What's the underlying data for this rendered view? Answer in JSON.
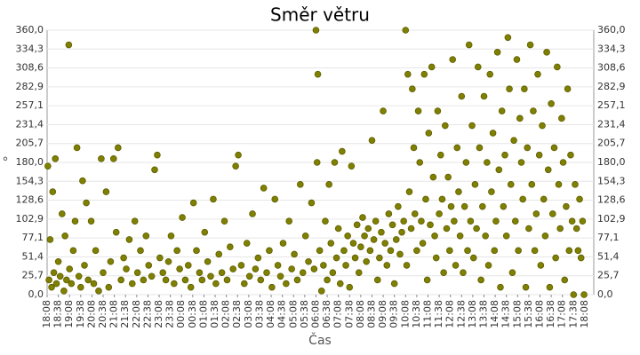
{
  "chart_data": {
    "type": "scatter",
    "title": "Směr větru",
    "xlabel": "Čas",
    "ylabel": "°",
    "color": "#808000",
    "grid": true,
    "xlim": [
      0,
      1464
    ],
    "ylim": [
      0,
      360
    ],
    "xticks": [
      {
        "value": 0,
        "label": "18:08"
      },
      {
        "value": 30,
        "label": "18:38"
      },
      {
        "value": 60,
        "label": "19:08"
      },
      {
        "value": 90,
        "label": "19:38"
      },
      {
        "value": 120,
        "label": "20:08"
      },
      {
        "value": 150,
        "label": "20:38"
      },
      {
        "value": 180,
        "label": "21:08"
      },
      {
        "value": 210,
        "label": "21:38"
      },
      {
        "value": 240,
        "label": "22:08"
      },
      {
        "value": 270,
        "label": "22:38"
      },
      {
        "value": 300,
        "label": "23:08"
      },
      {
        "value": 330,
        "label": "23:38"
      },
      {
        "value": 360,
        "label": "00:08"
      },
      {
        "value": 390,
        "label": "00:38"
      },
      {
        "value": 420,
        "label": "01:08"
      },
      {
        "value": 450,
        "label": "01:38"
      },
      {
        "value": 480,
        "label": "02:08"
      },
      {
        "value": 510,
        "label": "02:38"
      },
      {
        "value": 540,
        "label": "03:08"
      },
      {
        "value": 570,
        "label": "03:38"
      },
      {
        "value": 600,
        "label": "04:08"
      },
      {
        "value": 630,
        "label": "04:38"
      },
      {
        "value": 660,
        "label": "05:08"
      },
      {
        "value": 690,
        "label": "05:38"
      },
      {
        "value": 720,
        "label": "06:08"
      },
      {
        "value": 750,
        "label": "06:38"
      },
      {
        "value": 780,
        "label": "07:08"
      },
      {
        "value": 810,
        "label": "07:38"
      },
      {
        "value": 840,
        "label": "08:08"
      },
      {
        "value": 870,
        "label": "08:38"
      },
      {
        "value": 900,
        "label": "09:08"
      },
      {
        "value": 930,
        "label": "09:38"
      },
      {
        "value": 960,
        "label": "10:08"
      },
      {
        "value": 990,
        "label": "10:38"
      },
      {
        "value": 1020,
        "label": "11:08"
      },
      {
        "value": 1050,
        "label": "11:38"
      },
      {
        "value": 1080,
        "label": "12:08"
      },
      {
        "value": 1110,
        "label": "12:38"
      },
      {
        "value": 1140,
        "label": "13:08"
      },
      {
        "value": 1170,
        "label": "13:38"
      },
      {
        "value": 1200,
        "label": "14:08"
      },
      {
        "value": 1230,
        "label": "14:38"
      },
      {
        "value": 1260,
        "label": "15:08"
      },
      {
        "value": 1290,
        "label": "15:38"
      },
      {
        "value": 1320,
        "label": "16:08"
      },
      {
        "value": 1350,
        "label": "16:38"
      },
      {
        "value": 1380,
        "label": "17:08"
      },
      {
        "value": 1410,
        "label": "17:38"
      },
      {
        "value": 1440,
        "label": "18:08"
      }
    ],
    "yticks": [
      {
        "value": 0,
        "label": "0,0"
      },
      {
        "value": 25.7,
        "label": "25,7"
      },
      {
        "value": 51.4,
        "label": "51,4"
      },
      {
        "value": 77.1,
        "label": "77,1"
      },
      {
        "value": 102.9,
        "label": "102,9"
      },
      {
        "value": 128.6,
        "label": "128,6"
      },
      {
        "value": 154.3,
        "label": "154,3"
      },
      {
        "value": 180,
        "label": "180,0"
      },
      {
        "value": 205.7,
        "label": "205,7"
      },
      {
        "value": 231.4,
        "label": "231,4"
      },
      {
        "value": 257.1,
        "label": "257,1"
      },
      {
        "value": 282.9,
        "label": "282,9"
      },
      {
        "value": 308.6,
        "label": "308,6"
      },
      {
        "value": 334.3,
        "label": "334,3"
      },
      {
        "value": 360,
        "label": "360,0"
      }
    ],
    "x": [
      2,
      5,
      8,
      12,
      15,
      18,
      22,
      25,
      30,
      35,
      40,
      45,
      48,
      52,
      58,
      60,
      65,
      70,
      75,
      80,
      85,
      90,
      95,
      100,
      105,
      110,
      118,
      125,
      130,
      138,
      145,
      150,
      158,
      165,
      170,
      178,
      185,
      190,
      198,
      205,
      212,
      220,
      228,
      235,
      242,
      250,
      258,
      265,
      272,
      280,
      288,
      295,
      302,
      310,
      318,
      325,
      332,
      340,
      348,
      355,
      362,
      370,
      378,
      385,
      392,
      400,
      408,
      415,
      422,
      430,
      438,
      445,
      452,
      460,
      468,
      475,
      482,
      490,
      498,
      505,
      512,
      520,
      528,
      535,
      542,
      550,
      558,
      565,
      572,
      580,
      588,
      595,
      602,
      610,
      618,
      625,
      632,
      640,
      648,
      655,
      662,
      670,
      678,
      685,
      692,
      700,
      708,
      715,
      720,
      723,
      725,
      730,
      735,
      740,
      745,
      750,
      755,
      760,
      765,
      770,
      775,
      780,
      785,
      790,
      795,
      800,
      805,
      810,
      815,
      820,
      825,
      830,
      835,
      840,
      845,
      850,
      855,
      860,
      865,
      870,
      875,
      880,
      885,
      890,
      895,
      900,
      905,
      910,
      915,
      920,
      925,
      930,
      935,
      940,
      945,
      950,
      955,
      960,
      963,
      966,
      970,
      975,
      978,
      982,
      985,
      990,
      994,
      998,
      1002,
      1006,
      1010,
      1014,
      1018,
      1022,
      1026,
      1030,
      1034,
      1038,
      1042,
      1046,
      1050,
      1054,
      1058,
      1062,
      1066,
      1070,
      1074,
      1078,
      1082,
      1086,
      1090,
      1094,
      1098,
      1102,
      1106,
      1110,
      1114,
      1118,
      1122,
      1126,
      1130,
      1134,
      1138,
      1142,
      1146,
      1150,
      1154,
      1158,
      1162,
      1166,
      1170,
      1174,
      1178,
      1182,
      1186,
      1190,
      1194,
      1198,
      1202,
      1206,
      1210,
      1214,
      1218,
      1222,
      1226,
      1230,
      1234,
      1238,
      1242,
      1246,
      1250,
      1254,
      1258,
      1262,
      1266,
      1270,
      1274,
      1278,
      1282,
      1286,
      1290,
      1294,
      1298,
      1302,
      1306,
      1310,
      1314,
      1318,
      1322,
      1326,
      1330,
      1334,
      1338,
      1342,
      1346,
      1350,
      1354,
      1358,
      1362,
      1366,
      1370,
      1374,
      1378,
      1382,
      1386,
      1390,
      1394,
      1398,
      1402,
      1406,
      1410,
      1414,
      1418,
      1422,
      1426,
      1430,
      1434,
      1438
    ],
    "values": [
      175,
      20,
      75,
      10,
      140,
      30,
      185,
      15,
      45,
      25,
      110,
      5,
      80,
      20,
      340,
      35,
      15,
      60,
      100,
      200,
      25,
      10,
      155,
      40,
      125,
      20,
      100,
      15,
      60,
      5,
      185,
      30,
      140,
      10,
      45,
      185,
      85,
      200,
      20,
      50,
      35,
      75,
      15,
      100,
      30,
      60,
      20,
      80,
      40,
      25,
      170,
      190,
      50,
      30,
      20,
      45,
      80,
      15,
      60,
      35,
      105,
      20,
      40,
      10,
      125,
      60,
      30,
      20,
      85,
      45,
      25,
      130,
      15,
      55,
      30,
      100,
      20,
      65,
      35,
      175,
      190,
      40,
      15,
      70,
      25,
      110,
      35,
      50,
      20,
      145,
      30,
      60,
      10,
      130,
      40,
      25,
      70,
      15,
      100,
      35,
      55,
      20,
      150,
      30,
      80,
      45,
      125,
      35,
      360,
      180,
      300,
      60,
      5,
      40,
      100,
      20,
      150,
      70,
      30,
      180,
      50,
      90,
      15,
      195,
      60,
      40,
      80,
      10,
      175,
      70,
      50,
      95,
      30,
      65,
      105,
      80,
      45,
      90,
      60,
      210,
      75,
      100,
      20,
      50,
      85,
      250,
      70,
      40,
      110,
      60,
      95,
      15,
      75,
      120,
      55,
      85,
      100,
      360,
      40,
      300,
      140,
      90,
      280,
      200,
      110,
      60,
      250,
      180,
      100,
      70,
      300,
      130,
      20,
      220,
      95,
      310,
      160,
      80,
      50,
      250,
      110,
      190,
      130,
      30,
      230,
      90,
      160,
      60,
      120,
      320,
      100,
      40,
      200,
      140,
      80,
      270,
      30,
      120,
      180,
      60,
      340,
      100,
      230,
      50,
      150,
      90,
      310,
      200,
      20,
      120,
      270,
      80,
      180,
      40,
      300,
      140,
      220,
      60,
      100,
      330,
      170,
      10,
      250,
      120,
      190,
      80,
      350,
      280,
      150,
      30,
      210,
      100,
      320,
      60,
      240,
      180,
      130,
      280,
      10,
      200,
      90,
      340,
      150,
      250,
      60,
      110,
      300,
      190,
      40,
      230,
      130,
      80,
      330,
      170,
      10,
      260,
      110,
      200,
      50,
      310,
      150,
      90,
      240,
      180,
      20,
      120,
      280,
      60,
      190,
      100,
      0,
      150,
      90,
      60,
      130,
      50,
      100,
      0
    ]
  }
}
